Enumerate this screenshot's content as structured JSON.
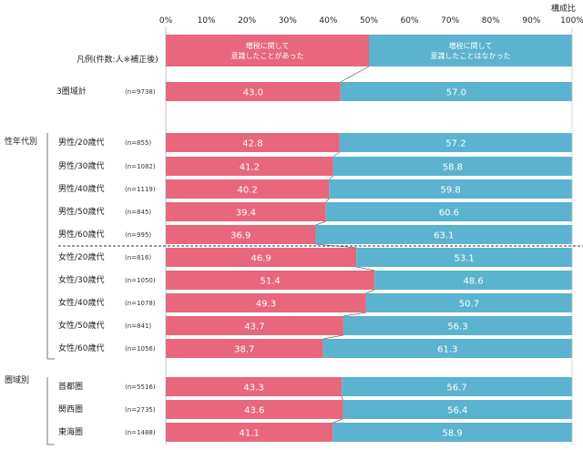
{
  "chart_data": {
    "type": "bar",
    "stacked": true,
    "orientation": "horizontal",
    "unit_label": "構成比",
    "x_ticks": [
      "0%",
      "10%",
      "20%",
      "30%",
      "40%",
      "50%",
      "60%",
      "70%",
      "80%",
      "90%",
      "100%"
    ],
    "xlim": [
      0,
      100
    ],
    "legend_label": "凡例(件数:人※補正後)",
    "series": [
      {
        "name": "増税に関して\n意識したことがあった",
        "color": "#e8677c"
      },
      {
        "name": "増税に関して\n意識したことはなかった",
        "color": "#5bb3cf"
      }
    ],
    "groups": [
      {
        "label": "",
        "rows": [
          {
            "label": "3圏域計",
            "n": "(n=9738)",
            "values": [
              43.0,
              57.0
            ]
          }
        ]
      },
      {
        "label": "性年代別",
        "rows": [
          {
            "label": "男性/20歳代",
            "n": "(n=855)",
            "values": [
              42.8,
              57.2
            ]
          },
          {
            "label": "男性/30歳代",
            "n": "(n=1082)",
            "values": [
              41.2,
              58.8
            ]
          },
          {
            "label": "男性/40歳代",
            "n": "(n=1119)",
            "values": [
              40.2,
              59.8
            ]
          },
          {
            "label": "男性/50歳代",
            "n": "(n=845)",
            "values": [
              39.4,
              60.6
            ]
          },
          {
            "label": "男性/60歳代",
            "n": "(n=995)",
            "values": [
              36.9,
              63.1
            ]
          },
          {
            "label": "女性/20歳代",
            "n": "(n=816)",
            "values": [
              46.9,
              53.1
            ]
          },
          {
            "label": "女性/30歳代",
            "n": "(n=1050)",
            "values": [
              51.4,
              48.6
            ]
          },
          {
            "label": "女性/40歳代",
            "n": "(n=1078)",
            "values": [
              49.3,
              50.7
            ]
          },
          {
            "label": "女性/50歳代",
            "n": "(n=841)",
            "values": [
              43.7,
              56.3
            ]
          },
          {
            "label": "女性/60歳代",
            "n": "(n=1056)",
            "values": [
              38.7,
              61.3
            ]
          }
        ]
      },
      {
        "label": "圏域別",
        "rows": [
          {
            "label": "首都圏",
            "n": "(n=5516)",
            "values": [
              43.3,
              56.7
            ]
          },
          {
            "label": "関西圏",
            "n": "(n=2735)",
            "values": [
              43.6,
              56.4
            ]
          },
          {
            "label": "東海圏",
            "n": "(n=1488)",
            "values": [
              41.1,
              58.9
            ]
          }
        ]
      }
    ]
  }
}
